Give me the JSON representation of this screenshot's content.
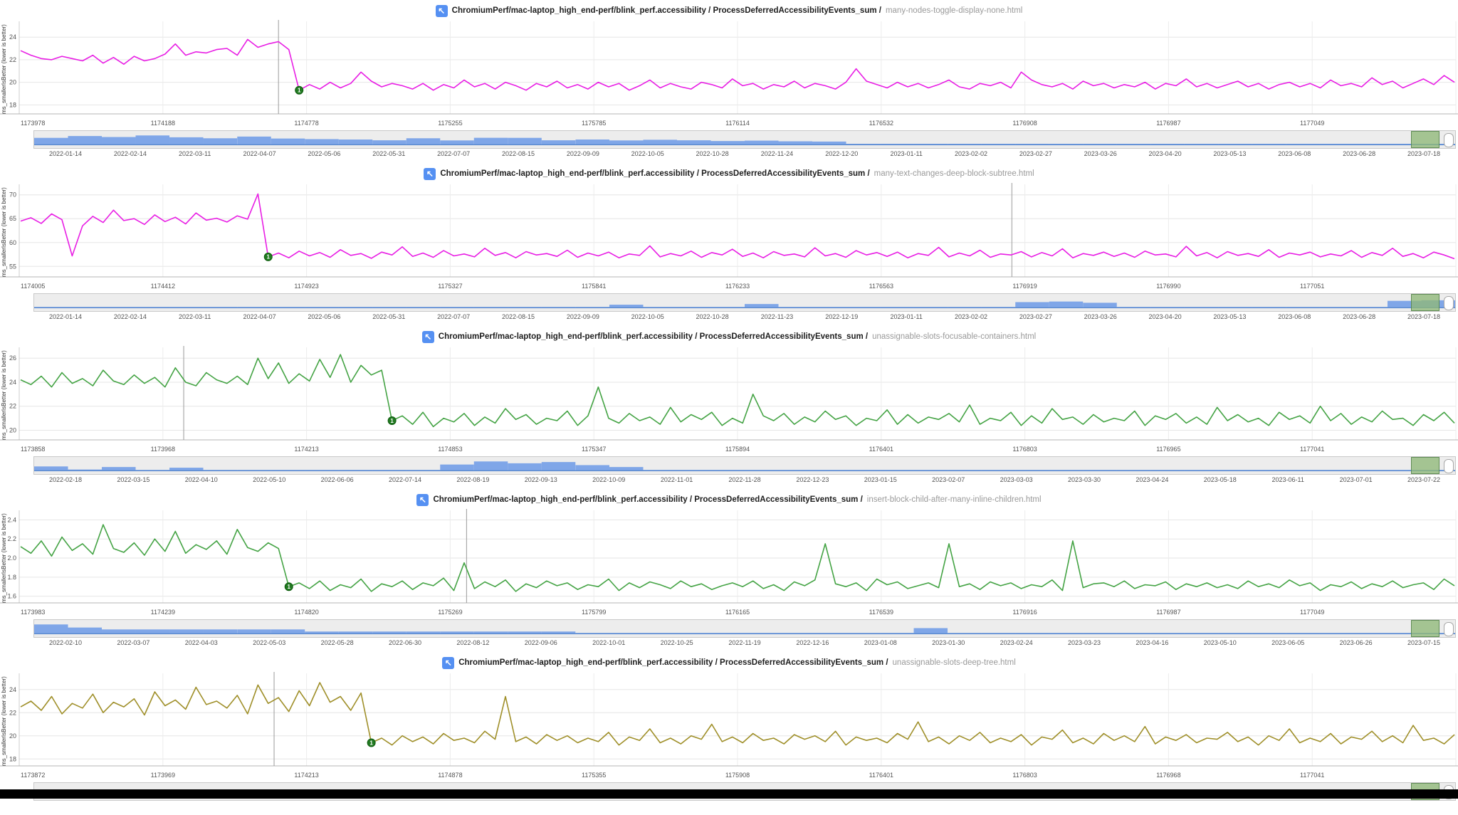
{
  "colors": {
    "icon_blue": "#5590f2",
    "magenta_series": "#e81ee4",
    "green_series": "#44a344",
    "olive_series": "#9f8f29",
    "marker_green": "#217a21",
    "minimap_blue": "#7fa6e8",
    "minimap_line_blue": "#5b8ad0",
    "selection_green": "#8fb878",
    "gridline": "#e6e6e6",
    "axis": "#b5b5b5",
    "tick_text": "#545454"
  },
  "chart_data": [
    {
      "type": "line",
      "title_prefix": "ChromiumPerf/mac-laptop_high_end-perf/blink_perf.accessibility / ProcessDeferredAccessibilityEvents_sum /",
      "title_test": "many-nodes-toggle-display-none.html",
      "y_label": "ms_smallerIsBetter (lower is better)",
      "y_ticks": [
        "18",
        "20",
        "22",
        "24"
      ],
      "y_min": 17.2,
      "y_max": 25.4,
      "line_color": "#e81ee4",
      "marker_index": 27,
      "marker_label": "1",
      "cursor_frac": 0.191,
      "x_ticks": [
        "1173978",
        "1174188",
        "1174778",
        "1175255",
        "1175785",
        "1176114",
        "1176532",
        "1176908",
        "1176987",
        "1177049"
      ],
      "dates": [
        "2022-01-14",
        "2022-02-14",
        "2022-03-11",
        "2022-04-07",
        "2022-05-06",
        "2022-05-31",
        "2022-07-07",
        "2022-08-15",
        "2022-09-09",
        "2022-10-05",
        "2022-10-28",
        "2022-11-24",
        "2022-12-20",
        "2023-01-11",
        "2023-02-02",
        "2023-02-27",
        "2023-03-26",
        "2023-04-20",
        "2023-05-13",
        "2023-06-08",
        "2023-06-28",
        "2023-07-18"
      ],
      "values": [
        22.8,
        22.4,
        22.1,
        22.0,
        22.3,
        22.1,
        21.9,
        22.4,
        21.7,
        22.2,
        21.6,
        22.3,
        21.9,
        22.1,
        22.5,
        23.4,
        22.4,
        22.7,
        22.6,
        22.9,
        23.0,
        22.4,
        23.8,
        23.1,
        23.4,
        23.6,
        22.9,
        19.3,
        19.8,
        19.4,
        20.0,
        19.5,
        19.9,
        20.9,
        20.1,
        19.6,
        19.9,
        19.7,
        19.4,
        19.9,
        19.3,
        19.8,
        19.5,
        20.2,
        19.6,
        19.9,
        19.4,
        20.0,
        19.7,
        19.3,
        19.9,
        19.6,
        20.1,
        19.5,
        19.8,
        19.4,
        20.0,
        19.6,
        19.9,
        19.3,
        19.7,
        20.2,
        19.5,
        19.9,
        19.6,
        19.4,
        20.0,
        19.8,
        19.5,
        20.3,
        19.7,
        19.9,
        19.4,
        19.8,
        19.6,
        20.1,
        19.5,
        19.9,
        19.7,
        19.4,
        20.0,
        21.2,
        20.1,
        19.8,
        19.5,
        20.0,
        19.6,
        19.9,
        19.5,
        19.8,
        20.2,
        19.6,
        19.4,
        19.9,
        19.7,
        20.0,
        19.5,
        20.9,
        20.2,
        19.8,
        19.6,
        19.9,
        19.4,
        20.1,
        19.7,
        19.9,
        19.5,
        19.8,
        19.6,
        20.0,
        19.4,
        19.9,
        19.7,
        20.3,
        19.6,
        19.9,
        19.5,
        19.8,
        20.1,
        19.6,
        19.9,
        19.4,
        19.8,
        20.0,
        19.6,
        19.9,
        19.5,
        20.2,
        19.7,
        19.9,
        19.6,
        20.4,
        19.8,
        20.1,
        19.5,
        19.9,
        20.3,
        19.8,
        20.6,
        20.0
      ],
      "minimap": {
        "profile": [
          0.55,
          0.7,
          0.62,
          0.75,
          0.6,
          0.52,
          0.66,
          0.5,
          0.45,
          0.42,
          0.36,
          0.52,
          0.35,
          0.56,
          0.55,
          0.36,
          0.42,
          0.35,
          0.4,
          0.36,
          0.3,
          0.33,
          0.28,
          0.26,
          0.08,
          0.08,
          0.08,
          0.08,
          0.08,
          0.08,
          0.08,
          0.08,
          0.08,
          0.08,
          0.08,
          0.08,
          0.08,
          0.08,
          0.08,
          0.08,
          0.08,
          0.08
        ],
        "selection": [
          0.969,
          0.989
        ]
      }
    },
    {
      "type": "line",
      "title_prefix": "ChromiumPerf/mac-laptop_high_end-perf/blink_perf.accessibility / ProcessDeferredAccessibilityEvents_sum /",
      "title_test": "many-text-changes-deep-block-subtree.html",
      "y_label": "ms_smallerIsBetter (lower is better)",
      "y_ticks": [
        "55",
        "60",
        "65",
        "70"
      ],
      "y_min": 52.8,
      "y_max": 72.2,
      "line_color": "#e81ee4",
      "marker_index": 24,
      "marker_label": "1",
      "cursor_frac": 0.694,
      "x_ticks": [
        "1174005",
        "1174412",
        "1174923",
        "1175327",
        "1175841",
        "1176233",
        "1176563",
        "1176919",
        "1176990",
        "1177051"
      ],
      "dates": [
        "2022-01-14",
        "2022-02-14",
        "2022-03-11",
        "2022-04-07",
        "2022-05-06",
        "2022-05-31",
        "2022-07-07",
        "2022-08-15",
        "2022-09-09",
        "2022-10-05",
        "2022-10-28",
        "2022-11-23",
        "2022-12-19",
        "2023-01-11",
        "2023-02-02",
        "2023-02-27",
        "2023-03-26",
        "2023-04-20",
        "2023-05-13",
        "2023-06-08",
        "2023-06-28",
        "2023-07-18"
      ],
      "values": [
        64.5,
        65.2,
        64.0,
        66.0,
        64.8,
        57.2,
        63.5,
        65.5,
        64.2,
        66.8,
        64.6,
        65.0,
        63.8,
        65.8,
        64.4,
        65.3,
        63.9,
        66.2,
        64.7,
        65.1,
        64.3,
        65.6,
        64.9,
        70.2,
        57.0,
        57.8,
        56.8,
        58.2,
        57.2,
        57.9,
        56.9,
        58.5,
        57.3,
        57.7,
        56.7,
        58.0,
        57.4,
        59.1,
        57.1,
        57.8,
        56.9,
        58.3,
        57.2,
        57.6,
        57.0,
        58.8,
        57.3,
        57.9,
        56.8,
        58.1,
        57.4,
        57.7,
        57.1,
        58.4,
        56.9,
        57.8,
        57.2,
        58.0,
        56.8,
        57.6,
        57.3,
        59.3,
        57.0,
        57.7,
        57.2,
        58.2,
        56.9,
        57.9,
        57.4,
        58.6,
        57.1,
        57.8,
        56.8,
        58.1,
        57.3,
        57.6,
        57.0,
        58.9,
        57.2,
        57.7,
        56.9,
        58.3,
        57.4,
        57.9,
        57.1,
        58.0,
        56.8,
        57.7,
        57.3,
        59.0,
        57.0,
        57.8,
        57.2,
        58.4,
        56.9,
        57.6,
        57.4,
        58.1,
        57.0,
        57.9,
        57.2,
        58.7,
        56.8,
        57.7,
        57.3,
        58.0,
        57.1,
        57.8,
        56.9,
        58.2,
        57.4,
        57.6,
        57.0,
        59.2,
        57.2,
        57.9,
        56.8,
        58.1,
        57.3,
        57.7,
        57.1,
        58.5,
        56.9,
        57.8,
        57.4,
        58.0,
        57.0,
        57.6,
        57.2,
        58.3,
        56.9,
        57.9,
        57.3,
        58.8,
        57.1,
        57.7,
        56.8,
        58.0,
        57.4,
        56.6
      ],
      "minimap": {
        "profile": [
          0.07,
          0.07,
          0.07,
          0.07,
          0.07,
          0.07,
          0.07,
          0.07,
          0.07,
          0.07,
          0.07,
          0.07,
          0.07,
          0.07,
          0.07,
          0.07,
          0.07,
          0.25,
          0.07,
          0.07,
          0.07,
          0.3,
          0.07,
          0.07,
          0.07,
          0.07,
          0.07,
          0.07,
          0.07,
          0.45,
          0.5,
          0.4,
          0.07,
          0.07,
          0.07,
          0.07,
          0.07,
          0.07,
          0.07,
          0.07,
          0.55,
          0.6
        ],
        "selection": [
          0.969,
          0.989
        ]
      }
    },
    {
      "type": "line",
      "title_prefix": "ChromiumPerf/mac-laptop_high_end-perf/blink_perf.accessibility / ProcessDeferredAccessibilityEvents_sum /",
      "title_test": "unassignable-slots-focusable-containers.html",
      "y_label": "ms_smallerIsBetter (lower is better)",
      "y_ticks": [
        "20",
        "22",
        "24",
        "26"
      ],
      "y_min": 19.2,
      "y_max": 26.9,
      "line_color": "#44a344",
      "marker_index": 36,
      "marker_label": "1",
      "cursor_frac": 0.126,
      "x_ticks": [
        "1173858",
        "1173968",
        "1174213",
        "1174853",
        "1175347",
        "1175894",
        "1176401",
        "1176803",
        "1176965",
        "1177041"
      ],
      "dates": [
        "2022-02-18",
        "2022-03-15",
        "2022-04-10",
        "2022-05-10",
        "2022-06-06",
        "2022-07-14",
        "2022-08-19",
        "2022-09-13",
        "2022-10-09",
        "2022-11-01",
        "2022-11-28",
        "2022-12-23",
        "2023-01-15",
        "2023-02-07",
        "2023-03-03",
        "2023-03-30",
        "2023-04-24",
        "2023-05-18",
        "2023-06-11",
        "2023-07-01",
        "2023-07-22"
      ],
      "values": [
        24.2,
        23.8,
        24.5,
        23.6,
        24.8,
        23.9,
        24.3,
        23.7,
        25.0,
        24.1,
        23.8,
        24.6,
        23.9,
        24.4,
        23.6,
        25.2,
        24.0,
        23.7,
        24.8,
        24.2,
        23.9,
        24.5,
        23.8,
        26.0,
        24.3,
        25.6,
        23.9,
        24.7,
        24.1,
        25.9,
        24.4,
        26.3,
        24.0,
        25.4,
        24.6,
        25.0,
        20.8,
        21.2,
        20.5,
        21.5,
        20.3,
        21.0,
        20.7,
        21.4,
        20.4,
        21.1,
        20.6,
        21.8,
        20.9,
        21.3,
        20.5,
        21.0,
        20.8,
        21.6,
        20.4,
        21.2,
        23.6,
        21.0,
        20.6,
        21.4,
        20.8,
        21.1,
        20.5,
        21.9,
        20.7,
        21.3,
        20.9,
        21.5,
        20.4,
        21.0,
        20.6,
        23.0,
        21.2,
        20.8,
        21.4,
        20.5,
        21.1,
        20.7,
        21.6,
        20.9,
        21.2,
        20.4,
        21.0,
        20.8,
        21.7,
        20.5,
        21.3,
        20.6,
        21.1,
        20.9,
        21.4,
        20.7,
        22.1,
        20.5,
        21.0,
        20.8,
        21.5,
        20.4,
        21.2,
        20.6,
        21.8,
        20.9,
        21.1,
        20.5,
        21.3,
        20.7,
        21.0,
        20.8,
        21.6,
        20.4,
        21.2,
        20.9,
        21.4,
        20.6,
        21.1,
        20.5,
        21.9,
        20.8,
        21.3,
        20.7,
        21.0,
        20.4,
        21.5,
        20.9,
        21.2,
        20.6,
        22.0,
        20.8,
        21.4,
        20.5,
        21.1,
        20.7,
        21.6,
        20.9,
        21.0,
        20.4,
        21.3,
        20.8,
        21.5,
        20.6
      ],
      "minimap": {
        "profile": [
          0.35,
          0.1,
          0.3,
          0.07,
          0.25,
          0.07,
          0.07,
          0.07,
          0.07,
          0.07,
          0.07,
          0.07,
          0.5,
          0.75,
          0.6,
          0.7,
          0.45,
          0.3,
          0.07,
          0.07,
          0.07,
          0.07,
          0.07,
          0.07,
          0.07,
          0.07,
          0.07,
          0.07,
          0.07,
          0.07,
          0.07,
          0.07,
          0.07,
          0.07,
          0.07,
          0.07,
          0.07,
          0.07,
          0.07,
          0.07,
          0.07,
          0.07
        ],
        "selection": [
          0.969,
          0.989
        ]
      }
    },
    {
      "type": "line",
      "title_prefix": "ChromiumPerf/mac-laptop_high_end-perf/blink_perf.accessibility / ProcessDeferredAccessibilityEvents_sum /",
      "title_test": "insert-block-child-after-many-inline-children.html",
      "y_label": "ms_smallerIsBetter (lower is better)",
      "y_ticks": [
        "1.6",
        "1.8",
        "2.0",
        "2.2",
        "2.4"
      ],
      "y_min": 1.53,
      "y_max": 2.5,
      "line_color": "#44a344",
      "marker_index": 26,
      "marker_label": "1",
      "cursor_frac": 0.32,
      "x_ticks": [
        "1173983",
        "1174239",
        "1174820",
        "1175269",
        "1175799",
        "1176165",
        "1176539",
        "1176916",
        "1176987",
        "1177049"
      ],
      "dates": [
        "2022-02-10",
        "2022-03-07",
        "2022-04-03",
        "2022-05-03",
        "2022-05-28",
        "2022-06-30",
        "2022-08-12",
        "2022-09-06",
        "2022-10-01",
        "2022-10-25",
        "2022-11-19",
        "2022-12-16",
        "2023-01-08",
        "2023-01-30",
        "2023-02-24",
        "2023-03-23",
        "2023-04-16",
        "2023-05-10",
        "2023-06-05",
        "2023-06-26",
        "2023-07-15"
      ],
      "values": [
        2.12,
        2.05,
        2.18,
        2.02,
        2.22,
        2.08,
        2.15,
        2.04,
        2.35,
        2.1,
        2.06,
        2.16,
        2.03,
        2.2,
        2.07,
        2.28,
        2.05,
        2.14,
        2.09,
        2.18,
        2.04,
        2.3,
        2.11,
        2.07,
        2.16,
        2.1,
        1.7,
        1.74,
        1.68,
        1.76,
        1.66,
        1.72,
        1.69,
        1.78,
        1.65,
        1.73,
        1.7,
        1.76,
        1.67,
        1.74,
        1.71,
        1.79,
        1.66,
        1.95,
        1.68,
        1.75,
        1.7,
        1.77,
        1.65,
        1.73,
        1.69,
        1.76,
        1.71,
        1.74,
        1.67,
        1.72,
        1.7,
        1.78,
        1.66,
        1.74,
        1.69,
        1.75,
        1.72,
        1.68,
        1.76,
        1.7,
        1.73,
        1.67,
        1.71,
        1.74,
        1.7,
        1.76,
        1.68,
        1.72,
        1.66,
        1.75,
        1.71,
        1.77,
        2.15,
        1.73,
        1.7,
        1.74,
        1.66,
        1.78,
        1.72,
        1.75,
        1.68,
        1.71,
        1.74,
        1.69,
        2.15,
        1.7,
        1.73,
        1.67,
        1.75,
        1.71,
        1.74,
        1.68,
        1.72,
        1.7,
        1.77,
        1.66,
        2.18,
        1.69,
        1.73,
        1.74,
        1.7,
        1.76,
        1.68,
        1.72,
        1.71,
        1.75,
        1.67,
        1.73,
        1.7,
        1.74,
        1.69,
        1.72,
        1.68,
        1.76,
        1.7,
        1.73,
        1.69,
        1.77,
        1.71,
        1.74,
        1.66,
        1.72,
        1.7,
        1.75,
        1.68,
        1.73,
        1.7,
        1.76,
        1.69,
        1.72,
        1.74,
        1.67,
        1.78,
        1.71
      ],
      "minimap": {
        "profile": [
          0.75,
          0.5,
          0.35,
          0.35,
          0.35,
          0.35,
          0.35,
          0.35,
          0.18,
          0.18,
          0.18,
          0.18,
          0.18,
          0.18,
          0.18,
          0.18,
          0.07,
          0.07,
          0.07,
          0.07,
          0.07,
          0.07,
          0.07,
          0.07,
          0.07,
          0.07,
          0.45,
          0.07,
          0.07,
          0.07,
          0.07,
          0.07,
          0.07,
          0.07,
          0.07,
          0.07,
          0.07,
          0.07,
          0.07,
          0.07,
          0.07,
          0.07
        ],
        "selection": [
          0.969,
          0.989
        ]
      }
    },
    {
      "type": "line",
      "title_prefix": "ChromiumPerf/mac-laptop_high_end-perf/blink_perf.accessibility / ProcessDeferredAccessibilityEvents_sum /",
      "title_test": "unassignable-slots-deep-tree.html",
      "y_label": "ms_smallerIsBetter (lower is better)",
      "y_ticks": [
        "18",
        "20",
        "22",
        "24"
      ],
      "y_min": 17.4,
      "y_max": 25.4,
      "line_color": "#9f8f29",
      "marker_index": 34,
      "marker_label": "1",
      "cursor_frac": 0.188,
      "x_ticks": [
        "1173872",
        "1173969",
        "1174213",
        "1174878",
        "1175355",
        "1175908",
        "1176401",
        "1176803",
        "1176968",
        "1177041"
      ],
      "dates": [],
      "values": [
        22.5,
        23.0,
        22.2,
        23.4,
        21.9,
        22.8,
        22.4,
        23.6,
        22.0,
        22.9,
        22.5,
        23.2,
        21.8,
        23.8,
        22.6,
        23.1,
        22.3,
        24.2,
        22.7,
        23.0,
        22.4,
        23.5,
        21.9,
        24.4,
        22.8,
        23.3,
        22.1,
        23.9,
        22.6,
        24.6,
        22.9,
        23.4,
        22.2,
        23.7,
        19.4,
        19.8,
        19.2,
        20.0,
        19.5,
        19.9,
        19.3,
        20.2,
        19.6,
        19.8,
        19.4,
        20.4,
        19.7,
        23.4,
        19.5,
        19.9,
        19.3,
        20.1,
        19.6,
        20.0,
        19.4,
        19.8,
        19.5,
        20.3,
        19.2,
        19.9,
        19.6,
        20.6,
        19.4,
        19.8,
        19.3,
        20.0,
        19.7,
        21.0,
        19.5,
        19.9,
        19.4,
        20.2,
        19.6,
        19.8,
        19.3,
        20.1,
        19.7,
        20.0,
        19.5,
        20.4,
        19.2,
        19.9,
        19.6,
        19.8,
        19.4,
        20.2,
        19.7,
        21.2,
        19.5,
        19.9,
        19.3,
        20.0,
        19.6,
        20.3,
        19.4,
        19.8,
        19.5,
        20.1,
        19.2,
        19.9,
        19.7,
        20.5,
        19.4,
        19.8,
        19.3,
        20.2,
        19.6,
        20.0,
        19.5,
        20.8,
        19.3,
        19.9,
        19.6,
        20.1,
        19.4,
        19.8,
        19.7,
        20.3,
        19.5,
        19.9,
        19.2,
        20.0,
        19.6,
        20.6,
        19.4,
        19.8,
        19.5,
        20.2,
        19.3,
        19.9,
        19.7,
        20.4,
        19.5,
        20.0,
        19.4,
        20.9,
        19.6,
        19.8,
        19.3,
        20.1
      ],
      "minimap": {
        "profile": [
          0.07,
          0.07,
          0.07,
          0.07,
          0.07,
          0.07,
          0.07,
          0.07,
          0.07,
          0.07,
          0.07,
          0.07,
          0.07,
          0.07,
          0.07,
          0.07,
          0.07,
          0.07,
          0.07,
          0.07,
          0.07,
          0.07,
          0.07,
          0.07,
          0.07,
          0.07,
          0.07,
          0.07,
          0.07,
          0.07,
          0.07,
          0.07,
          0.07,
          0.07,
          0.07,
          0.07,
          0.07,
          0.07,
          0.07,
          0.07,
          0.07,
          0.07
        ],
        "selection": [
          0.969,
          0.989
        ]
      }
    }
  ]
}
